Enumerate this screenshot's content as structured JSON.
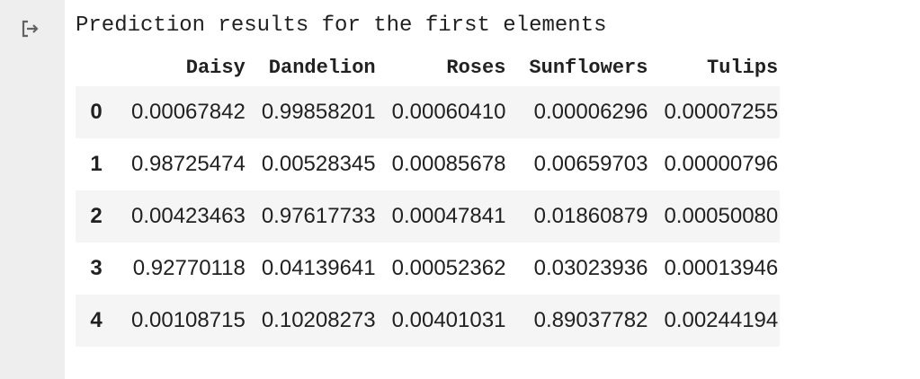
{
  "output": {
    "caption": "Prediction results for the first elements"
  },
  "table": {
    "columns": [
      "",
      "Daisy",
      "Dandelion",
      "Roses",
      "Sunflowers",
      "Tulips"
    ],
    "rows": [
      [
        "0",
        "0.00067842",
        "0.99858201",
        "0.00060410",
        "0.00006296",
        "0.00007255"
      ],
      [
        "1",
        "0.98725474",
        "0.00528345",
        "0.00085678",
        "0.00659703",
        "0.00000796"
      ],
      [
        "2",
        "0.00423463",
        "0.97617733",
        "0.00047841",
        "0.01860879",
        "0.00050080"
      ],
      [
        "3",
        "0.92770118",
        "0.04139641",
        "0.00052362",
        "0.03023936",
        "0.00013946"
      ],
      [
        "4",
        "0.00108715",
        "0.10208273",
        "0.00401031",
        "0.89037782",
        "0.00244194"
      ]
    ]
  },
  "colors": {
    "gutter": "#eeeeee",
    "icon": "#5f6368",
    "text": "#212121",
    "row_stripe": "#f5f5f5"
  },
  "icons": {
    "output": "output-redirect-icon"
  }
}
